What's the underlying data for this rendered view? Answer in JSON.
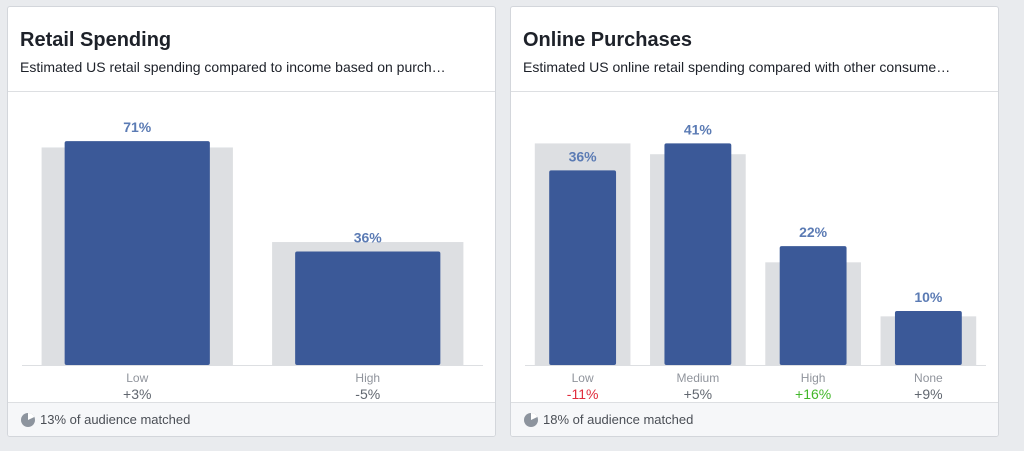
{
  "colors": {
    "bar": "#3b5998",
    "baseline": "#dddfe2",
    "value_label": "#5b7bb4",
    "category_label": "#90949c",
    "delta_neutral": "#616770",
    "delta_negative": "#e02c3c",
    "delta_positive": "#42b72a"
  },
  "chart_data": [
    {
      "type": "bar",
      "title": "Retail Spending",
      "subtitle": "Estimated US retail spending compared to income based on purch…",
      "categories": [
        "Low",
        "High"
      ],
      "values": [
        71,
        36
      ],
      "value_labels": [
        "71%",
        "36%"
      ],
      "baseline_values": [
        69,
        39
      ],
      "deltas": [
        "+3%",
        "-5%"
      ],
      "delta_colors": [
        "neutral",
        "neutral"
      ],
      "ylim": [
        0,
        72
      ],
      "footer": "13% of audience matched",
      "footer_icon": "pie-chart-icon"
    },
    {
      "type": "bar",
      "title": "Online Purchases",
      "subtitle": "Estimated US online retail spending compared with other consume…",
      "categories": [
        "Low",
        "Medium",
        "High",
        "None"
      ],
      "values": [
        36,
        41,
        22,
        10
      ],
      "value_labels": [
        "36%",
        "41%",
        "22%",
        "10%"
      ],
      "baseline_values": [
        41,
        39,
        19,
        9
      ],
      "deltas": [
        "-11%",
        "+5%",
        "+16%",
        "+9%"
      ],
      "delta_colors": [
        "negative",
        "neutral",
        "positive",
        "neutral"
      ],
      "ylim": [
        0,
        42
      ],
      "footer": "18% of audience matched",
      "footer_icon": "pie-chart-icon"
    }
  ]
}
